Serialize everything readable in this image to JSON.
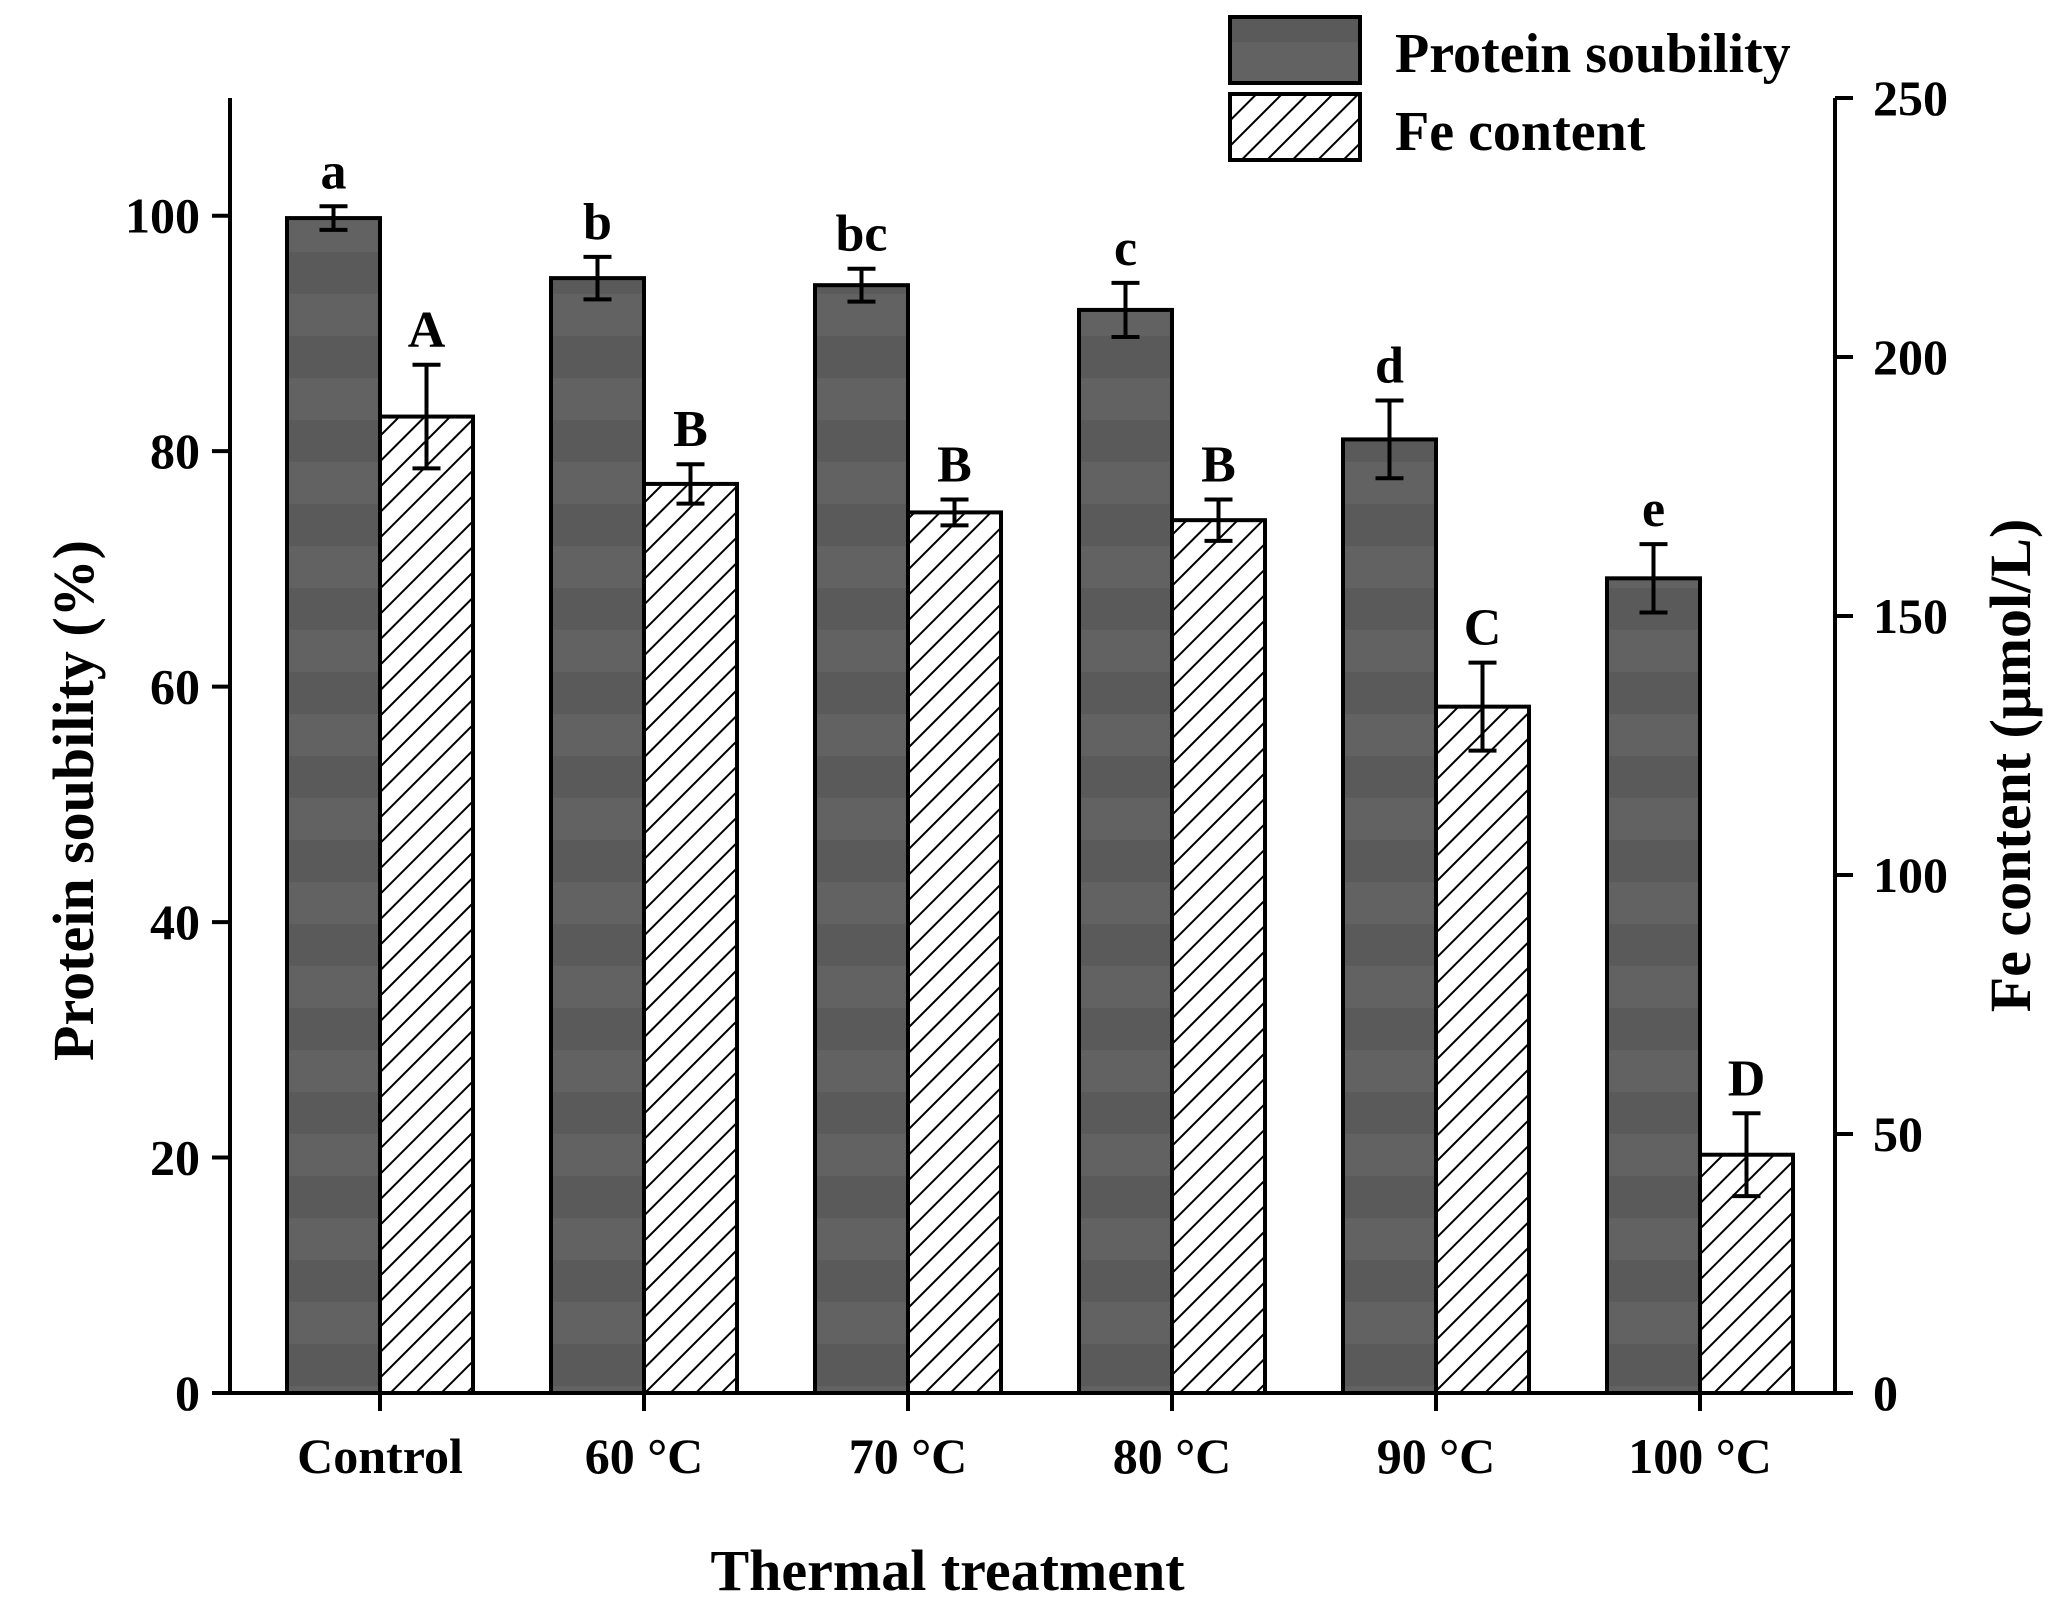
{
  "chart_data": {
    "type": "bar",
    "title": "",
    "xlabel": "Thermal treatment",
    "ylabel": "Protein soubility (%)",
    "y2label": "Fe content (μmol/L)",
    "categories": [
      "Control",
      "60 °C",
      "70 °C",
      "80 °C",
      "90 °C",
      "100 °C"
    ],
    "ylim": [
      0,
      110
    ],
    "y2lim": [
      0,
      250
    ],
    "yticks": [
      0,
      20,
      40,
      60,
      80,
      100
    ],
    "y2ticks": [
      0,
      50,
      100,
      150,
      200,
      250
    ],
    "legend_position": "top-right",
    "series": [
      {
        "name": "Protein soubility",
        "axis": "left",
        "style": "solid",
        "values": [
          99.8,
          94.7,
          94.1,
          92.0,
          81.0,
          69.2
        ],
        "errors": [
          1.0,
          1.8,
          1.4,
          2.3,
          3.3,
          2.9
        ],
        "labels": [
          "a",
          "b",
          "bc",
          "c",
          "d",
          "e"
        ]
      },
      {
        "name": "Fe content",
        "axis": "right",
        "style": "hatched",
        "values": [
          188.5,
          175.5,
          170.0,
          168.5,
          132.5,
          46.0
        ],
        "errors": [
          10.0,
          3.8,
          2.5,
          4.0,
          8.5,
          8.0
        ],
        "labels": [
          "A",
          "B",
          "B",
          "B",
          "C",
          "D"
        ]
      }
    ],
    "colors": {
      "solid_fill": "#5a5a5a",
      "solid_band": "#616161",
      "hatch_fill": "#ffffff",
      "line": "#000000"
    }
  }
}
